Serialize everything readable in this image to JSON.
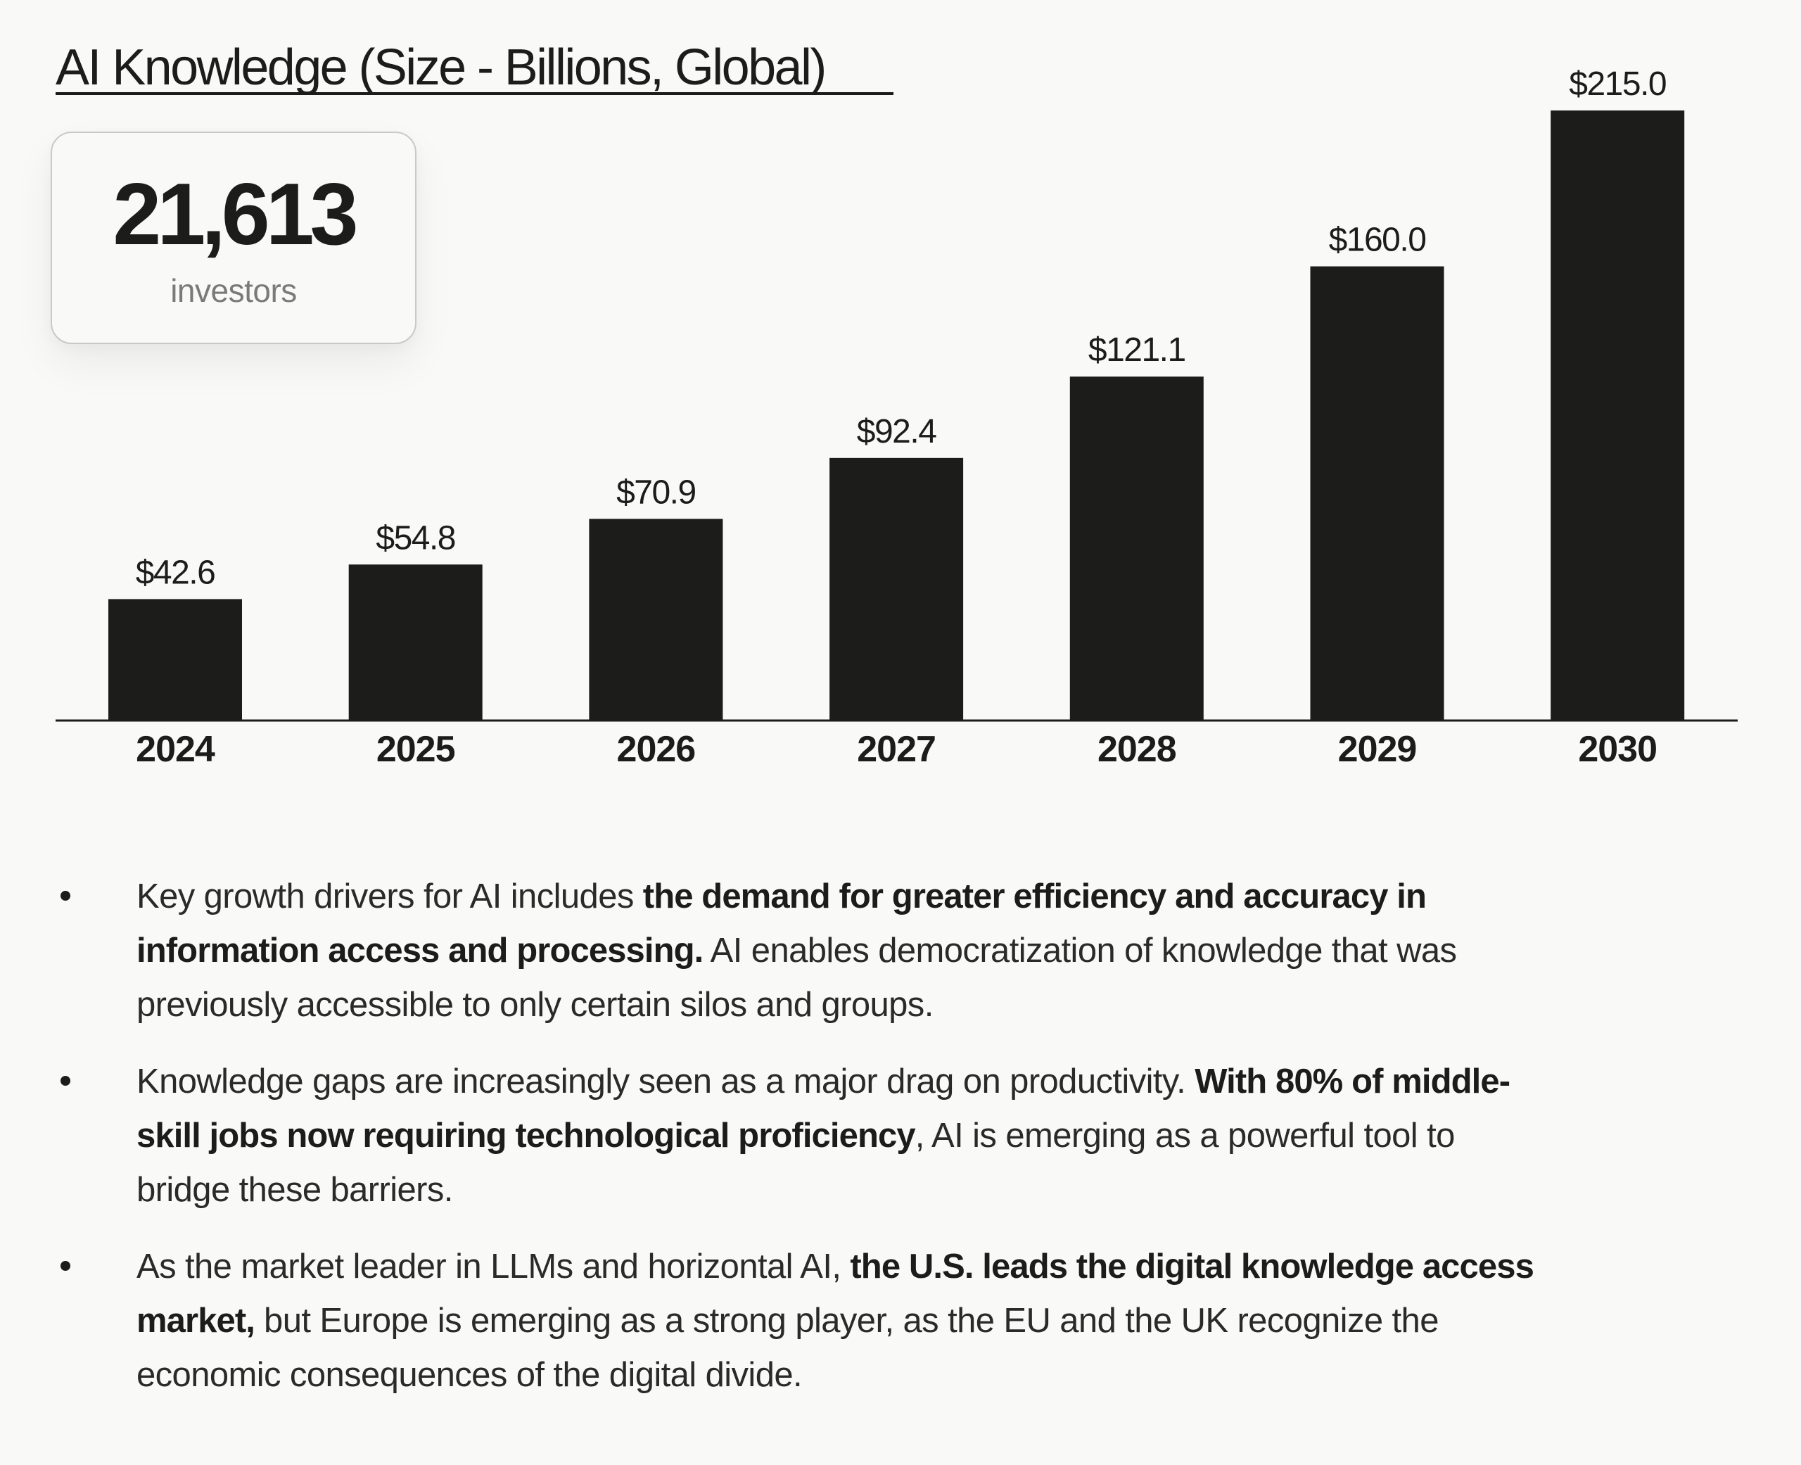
{
  "header": {
    "title": "AI Knowledge (Size - Billions, Global)"
  },
  "stat_card": {
    "value": "21,613",
    "label": "investors"
  },
  "colors": {
    "background": "#f9f9f7",
    "bar": "#1c1c1a",
    "text": "#1c1c1a",
    "muted": "#7a7a78"
  },
  "chart_data": {
    "type": "bar",
    "title": "AI Knowledge (Size - Billions, Global)",
    "xlabel": "",
    "ylabel": "",
    "categories": [
      "2024",
      "2025",
      "2026",
      "2027",
      "2028",
      "2029",
      "2030"
    ],
    "values": [
      42.6,
      54.8,
      70.9,
      92.4,
      121.1,
      160.0,
      215.0
    ],
    "value_labels": [
      "$42.6",
      "$54.8",
      "$70.9",
      "$92.4",
      "$121.1",
      "$160.0",
      "$215.0"
    ],
    "ylim": [
      0,
      215
    ],
    "grid": false,
    "legend": "none"
  },
  "bullets": [
    {
      "lines": [
        [
          {
            "t": "Key growth drivers for AI includes ",
            "b": false
          },
          {
            "t": "the demand for greater efficiency and accuracy in",
            "b": true
          }
        ],
        [
          {
            "t": "information access and processing.",
            "b": true
          },
          {
            "t": " AI enables democratization of knowledge that was",
            "b": false
          }
        ],
        [
          {
            "t": "previously accessible to only certain silos and groups.",
            "b": false
          }
        ]
      ]
    },
    {
      "lines": [
        [
          {
            "t": "Knowledge gaps are increasingly seen as a major drag on productivity. ",
            "b": false
          },
          {
            "t": "With 80% of middle-",
            "b": true
          }
        ],
        [
          {
            "t": "skill jobs now requiring technological proficiency",
            "b": true
          },
          {
            "t": ", AI is emerging as a powerful tool to",
            "b": false
          }
        ],
        [
          {
            "t": "bridge these barriers.",
            "b": false
          }
        ]
      ]
    },
    {
      "lines": [
        [
          {
            "t": "As the market leader in LLMs and horizontal AI, ",
            "b": false
          },
          {
            "t": "the U.S. leads the digital knowledge access",
            "b": true
          }
        ],
        [
          {
            "t": "market,",
            "b": true
          },
          {
            "t": " but Europe is emerging as a strong player, as the EU and the UK recognize the",
            "b": false
          }
        ],
        [
          {
            "t": "economic consequences of the digital divide.",
            "b": false
          }
        ]
      ]
    }
  ]
}
